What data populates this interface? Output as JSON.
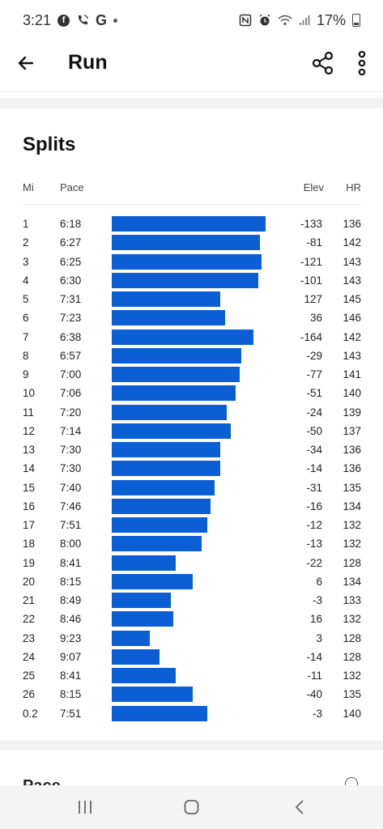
{
  "status_bar": {
    "time": "3:21",
    "battery": "17%",
    "left_icons": [
      "facebook-icon",
      "wifi-calling-icon",
      "google-icon",
      "dot-icon"
    ],
    "right_icons": [
      "nfc-icon",
      "alarm-icon",
      "wifi-icon",
      "signal-icon",
      "battery-icon"
    ]
  },
  "app_bar": {
    "title": "Run",
    "back_icon": "arrow-left-icon",
    "share_icon": "share-icon",
    "more_icon": "more-vertical-icon"
  },
  "splits": {
    "title": "Splits",
    "headers": {
      "mi": "Mi",
      "pace": "Pace",
      "elev": "Elev",
      "hr": "HR"
    },
    "bar_color": "#0b5ed4",
    "rows": [
      {
        "mi": "1",
        "pace": "6:18",
        "elev": "-133",
        "hr": "136"
      },
      {
        "mi": "2",
        "pace": "6:27",
        "elev": "-81",
        "hr": "142"
      },
      {
        "mi": "3",
        "pace": "6:25",
        "elev": "-121",
        "hr": "143"
      },
      {
        "mi": "4",
        "pace": "6:30",
        "elev": "-101",
        "hr": "143"
      },
      {
        "mi": "5",
        "pace": "7:31",
        "elev": "127",
        "hr": "145"
      },
      {
        "mi": "6",
        "pace": "7:23",
        "elev": "36",
        "hr": "146"
      },
      {
        "mi": "7",
        "pace": "6:38",
        "elev": "-164",
        "hr": "142"
      },
      {
        "mi": "8",
        "pace": "6:57",
        "elev": "-29",
        "hr": "143"
      },
      {
        "mi": "9",
        "pace": "7:00",
        "elev": "-77",
        "hr": "141"
      },
      {
        "mi": "10",
        "pace": "7:06",
        "elev": "-51",
        "hr": "140"
      },
      {
        "mi": "11",
        "pace": "7:20",
        "elev": "-24",
        "hr": "139"
      },
      {
        "mi": "12",
        "pace": "7:14",
        "elev": "-50",
        "hr": "137"
      },
      {
        "mi": "13",
        "pace": "7:30",
        "elev": "-34",
        "hr": "136"
      },
      {
        "mi": "14",
        "pace": "7:30",
        "elev": "-14",
        "hr": "136"
      },
      {
        "mi": "15",
        "pace": "7:40",
        "elev": "-31",
        "hr": "135"
      },
      {
        "mi": "16",
        "pace": "7:46",
        "elev": "-16",
        "hr": "134"
      },
      {
        "mi": "17",
        "pace": "7:51",
        "elev": "-12",
        "hr": "132"
      },
      {
        "mi": "18",
        "pace": "8:00",
        "elev": "-13",
        "hr": "132"
      },
      {
        "mi": "19",
        "pace": "8:41",
        "elev": "-22",
        "hr": "128"
      },
      {
        "mi": "20",
        "pace": "8:15",
        "elev": "6",
        "hr": "134"
      },
      {
        "mi": "21",
        "pace": "8:49",
        "elev": "-3",
        "hr": "133"
      },
      {
        "mi": "22",
        "pace": "8:46",
        "elev": "16",
        "hr": "132"
      },
      {
        "mi": "23",
        "pace": "9:23",
        "elev": "3",
        "hr": "128"
      },
      {
        "mi": "24",
        "pace": "9:07",
        "elev": "-14",
        "hr": "128"
      },
      {
        "mi": "25",
        "pace": "8:41",
        "elev": "-11",
        "hr": "132"
      },
      {
        "mi": "26",
        "pace": "8:15",
        "elev": "-40",
        "hr": "135"
      },
      {
        "mi": "0.2",
        "pace": "7:51",
        "elev": "-3",
        "hr": "140"
      }
    ]
  },
  "next_section": {
    "title_partial": "Pace",
    "info_icon": "info-icon"
  },
  "nav_bar": {
    "recents_icon": "recents-icon",
    "home_icon": "home-icon",
    "back_icon": "back-chevron-icon"
  }
}
